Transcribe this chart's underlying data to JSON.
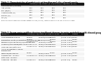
{
  "bg_color": "#ffffff",
  "header_bg": "#1a1a1a",
  "alt_row": "#eeeeee",
  "t1_title": "Table 1. Characteristics of participants at baseline and after almond snacks",
  "t1_header_top": [
    "",
    "Baseline",
    "",
    "After 8 weeks",
    ""
  ],
  "t1_subheader": [
    "",
    "Almond (n=25)",
    "Control (n=25)",
    "Almond (n=25)",
    "Control (n=25)"
  ],
  "t1_rows": [
    [
      "Characteristics (variable)",
      "mean",
      "mean"
    ],
    [
      "Age (years)",
      "0000",
      "0000"
    ],
    [
      "BMI (kg/m)",
      "00.0",
      "00.0"
    ],
    [
      "Carbohydrate (%)",
      "00.0",
      "00.0"
    ],
    [
      "Protein (%)",
      "00.0",
      "00.0"
    ],
    [
      "Fat (%)",
      "00.0",
      "00.0"
    ]
  ],
  "t1_note": "Baseline characteristics did not differ between groups (P>0.05). Data are means ± SD. BMI, body mass index.",
  "t2_title": "Table 2. Serum omics profiles showing significant changes in omics metabolites with almond group",
  "t2_header": [
    "Metabolite",
    "Almond (n=25)",
    "Control (n=25)",
    "Fold change",
    "(95% CI)",
    "p-adjust"
  ],
  "t2_rows": [
    [
      "Phosphatidylcholine",
      "0.0000",
      "0.0000/0.0000",
      "0.0000/0.0000",
      "(0.00 - 0.00)",
      "0.0000"
    ],
    [
      "Lysophosphatidylcholine",
      "0.00000",
      "0.00000/0.00000",
      "0.00000",
      "(0.000, 0.000)",
      "0.0000"
    ],
    [
      "Phosphatidylinositol/phosphatidylserine/ceramide",
      "0.00000",
      "0.00000/0.00000",
      "0.00000",
      "(0.000, 0.000)",
      "0.0000"
    ],
    [
      "Sphingolipid/lysophospholipid/diacylglycerol",
      "0.0000 ± 0.00",
      "0.000000/0.00000",
      "0.00000",
      "(0.000, 0.000)",
      "0.0000"
    ],
    [
      "Oleamide/linoleamide/fatty acid",
      "0.0000 ± 0.0",
      "0.0000/0.00000",
      "0.00000",
      "(0.000, 0.000)",
      "0.0000"
    ],
    [
      "Triacylglycerol/fatty acid",
      "0.0000 ± 0.0",
      "0.0000/0.00000",
      "0.00000",
      "(0.000, 0.000)",
      "0.0000"
    ],
    [
      "Amino acid/biogenic amine",
      "",
      "",
      "",
      "",
      ""
    ],
    [
      "Phospholipid",
      "",
      "",
      "",
      "",
      ""
    ],
    [
      "Ceramide/sphingolipid",
      "0.0000",
      "0.0000/0.0000",
      "0.0000",
      "(0.000, 0.000)",
      "0.0000"
    ],
    [
      "Phospholipid - glycerol",
      "0.000000 ± 0",
      "0.0000/0.000000",
      "0.00000",
      "(0.000, 0.000)",
      "0.0000"
    ],
    [
      "Fatty acid - glycerol",
      "",
      "",
      "",
      "",
      ""
    ],
    [
      "Ceramide - glycerol",
      "0.0000 ± 0",
      "0.0000/0.000000",
      "0.00000",
      "(0.000, 0.0)",
      "0.0000"
    ]
  ],
  "font_size": 1.6,
  "title_font_size": 1.8
}
